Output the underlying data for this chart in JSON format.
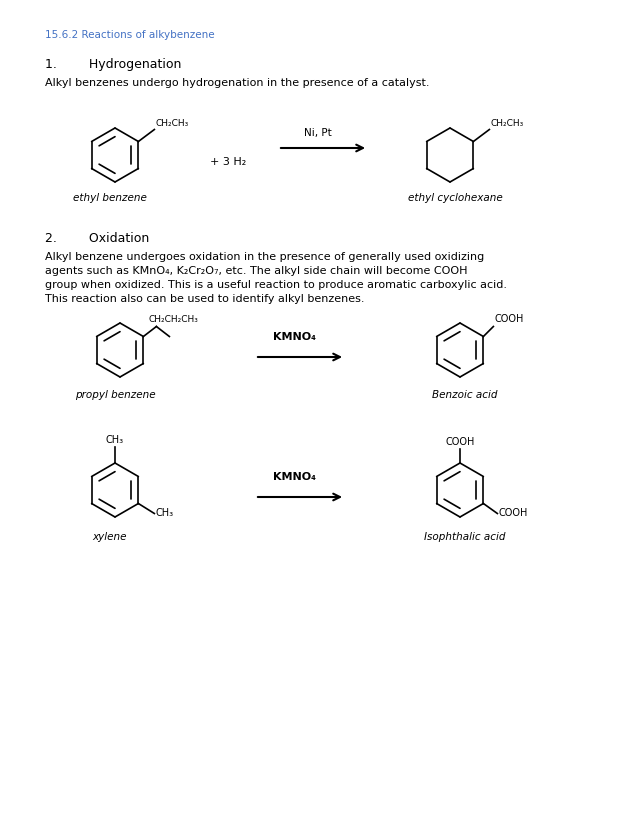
{
  "title": "15.6.2 Reactions of alkybenzene",
  "title_color": "#4472C4",
  "bg_color": "#ffffff",
  "section1_header": "1.        Hydrogenation",
  "section1_text": "Alkyl benzenes undergo hydrogenation in the presence of a catalyst.",
  "section2_header": "2.        Oxidation",
  "section2_text_line1": "Alkyl benzene undergoes oxidation in the presence of generally used oxidizing",
  "section2_text_line2": "agents such as KMnO₄, K₂Cr₂O₇, etc. The alkyl side chain will become COOH",
  "section2_text_line3": "group when oxidized. This is a useful reaction to produce aromatic carboxylic acid.",
  "section2_text_line4": "This reaction also can be used to identify alkyl benzenes.",
  "label_ethylbenzene": "ethyl benzene",
  "label_ethylcyclohexane": "ethyl cyclohexane",
  "label_propylbenzene": "propyl benzene",
  "label_benzoicacid": "Benzoic acid",
  "label_xylene": "xylene",
  "label_isophthalicacid": "Isophthalic acid",
  "reagent_ni_pt": "Ni, Pt",
  "reagent_h2": "+ 3 H₂",
  "reagent_kmno4": "KMNO₄"
}
